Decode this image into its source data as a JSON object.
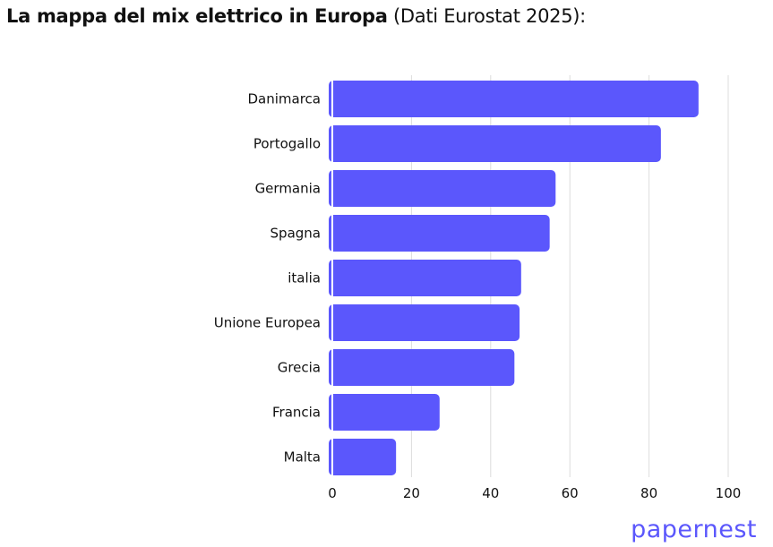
{
  "title": {
    "bold": "La mappa del mix elettrico in Europa",
    "normal": " (Dati Eurostat 2025):"
  },
  "logo": "papernest",
  "chart_data": {
    "type": "bar",
    "orientation": "horizontal",
    "categories": [
      "Danimarca",
      "Portogallo",
      "Germania",
      "Spagna",
      "italia",
      "Unione Europea",
      "Grecia",
      "Francia",
      "Malta"
    ],
    "values": [
      92.5,
      83.0,
      56.4,
      54.9,
      47.7,
      47.3,
      46.0,
      27.1,
      16.1
    ],
    "xlim": [
      0,
      100
    ],
    "xticks": [
      "0",
      "20",
      "40",
      "60",
      "80",
      "100"
    ],
    "grid": true,
    "bar_color": "#5b57fc"
  }
}
